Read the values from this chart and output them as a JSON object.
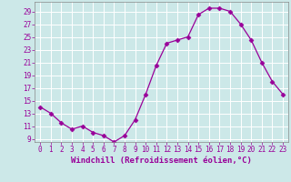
{
  "x": [
    0,
    1,
    2,
    3,
    4,
    5,
    6,
    7,
    8,
    9,
    10,
    11,
    12,
    13,
    14,
    15,
    16,
    17,
    18,
    19,
    20,
    21,
    22,
    23
  ],
  "y": [
    14,
    13,
    11.5,
    10.5,
    11,
    10,
    9.5,
    8.5,
    9.5,
    12,
    16,
    20.5,
    24,
    24.5,
    25,
    28.5,
    29.5,
    29.5,
    29,
    27,
    24.5,
    21,
    18,
    16
  ],
  "line_color": "#990099",
  "marker": "D",
  "marker_size": 2.5,
  "bg_color": "#cce8e8",
  "grid_color": "#ffffff",
  "xlabel": "Windchill (Refroidissement éolien,°C)",
  "xlabel_fontsize": 6.5,
  "yticks": [
    9,
    11,
    13,
    15,
    17,
    19,
    21,
    23,
    25,
    27,
    29
  ],
  "xticks": [
    0,
    1,
    2,
    3,
    4,
    5,
    6,
    7,
    8,
    9,
    10,
    11,
    12,
    13,
    14,
    15,
    16,
    17,
    18,
    19,
    20,
    21,
    22,
    23
  ],
  "ylim": [
    8.5,
    30.5
  ],
  "xlim": [
    -0.5,
    23.5
  ],
  "tick_color": "#990099",
  "tick_fontsize": 5.5,
  "border_color": "#888888"
}
